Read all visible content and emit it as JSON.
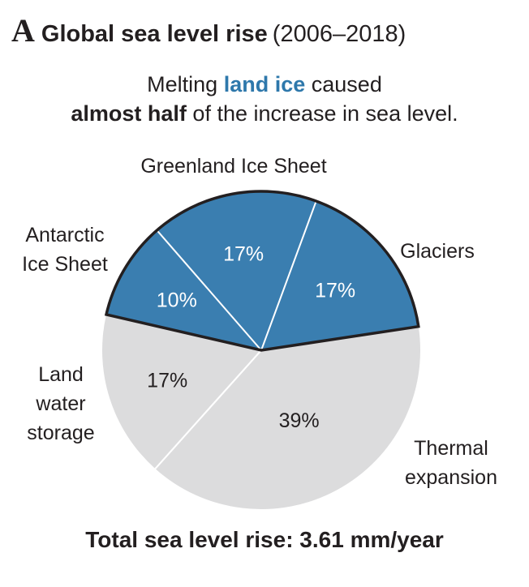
{
  "header": {
    "panel_letter": "A",
    "title": "Global sea level rise",
    "period": "(2006–2018)"
  },
  "subtitle": {
    "line1_pre": "Melting",
    "line1_highlight": "land ice",
    "line1_post": "caused",
    "line2_bold": "almost half",
    "line2_post": "of the increase in sea level."
  },
  "footer": "Total sea level rise: 3.61 mm/year",
  "colors": {
    "land_ice": "#3a7eb0",
    "other": "#dcdcdd",
    "outline": "#231f20",
    "divider": "#ffffff"
  },
  "chart_data": {
    "type": "pie",
    "slices": [
      {
        "name": "Antarctic Ice Sheet",
        "label_lines": [
          "Antarctic",
          "Ice Sheet"
        ],
        "value": 10,
        "pct_label": "10%",
        "group": "land_ice"
      },
      {
        "name": "Greenland Ice Sheet",
        "label_lines": [
          "Greenland Ice Sheet"
        ],
        "value": 17,
        "pct_label": "17%",
        "group": "land_ice"
      },
      {
        "name": "Glaciers",
        "label_lines": [
          "Glaciers"
        ],
        "value": 17,
        "pct_label": "17%",
        "group": "land_ice"
      },
      {
        "name": "Thermal expansion",
        "label_lines": [
          "Thermal",
          "expansion"
        ],
        "value": 39,
        "pct_label": "39%",
        "group": "other"
      },
      {
        "name": "Land water storage",
        "label_lines": [
          "Land",
          "water",
          "storage"
        ],
        "value": 17,
        "pct_label": "17%",
        "group": "other"
      }
    ]
  }
}
